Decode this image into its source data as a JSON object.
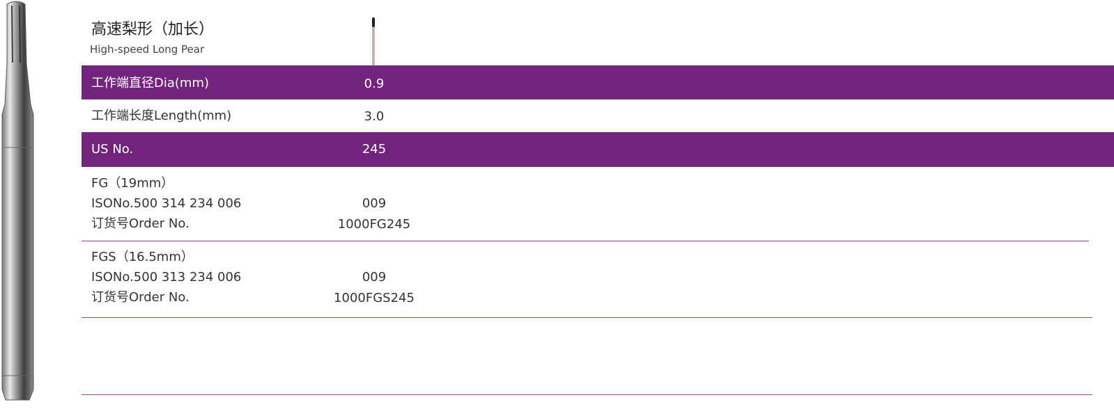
{
  "header": {
    "title": "高速梨形（加长）",
    "subtitle": "High-speed Long Pear"
  },
  "table": {
    "rows": [
      [
        "工作端直径Dia(mm)",
        "0.9"
      ],
      [
        "工作端长度Length(mm)",
        "3.0"
      ],
      [
        "US No.",
        "245"
      ]
    ],
    "groups": [
      {
        "name": "FG（19mm）",
        "iso": "ISONo.500 314 234 006",
        "iso_value": "009",
        "order_label": "订货号Order No.",
        "order_value": "1000FG245"
      },
      {
        "name": "FGS（16.5mm）",
        "iso": "ISONo.500 313 234 006",
        "iso_value": "009",
        "order_label": "订货号Order No.",
        "order_value": "1000FGS245"
      }
    ]
  }
}
